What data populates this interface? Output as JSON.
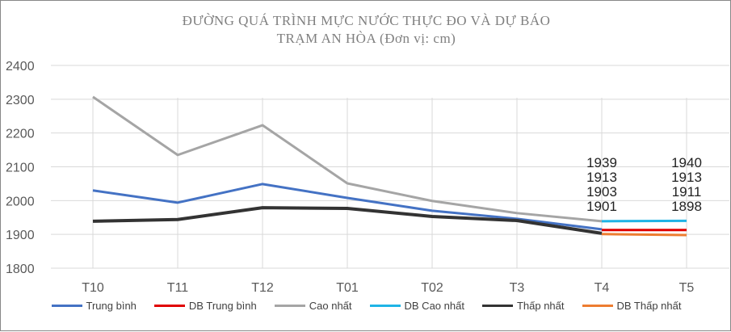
{
  "chart_data": {
    "type": "line",
    "title": "ĐƯỜNG QUÁ TRÌNH MỰC NƯỚC THỰC ĐO VÀ DỰ BÁO",
    "subtitle": "TRẠM AN HÒA (Đơn vị: cm)",
    "categories": [
      "T10",
      "T11",
      "T12",
      "T01",
      "T02",
      "T3",
      "T4",
      "T5"
    ],
    "ylim": [
      1800,
      2400
    ],
    "yticks": [
      1800,
      1900,
      2000,
      2100,
      2200,
      2300,
      2400
    ],
    "grid": true,
    "legend": "bottom",
    "series": [
      {
        "name": "Trung bình",
        "color": "#4472c4",
        "values": [
          2030,
          1994,
          2049,
          2008,
          1970,
          1946,
          1915,
          null
        ],
        "labels": false
      },
      {
        "name": "DB Trung bình",
        "color": "#e00000",
        "values": [
          null,
          null,
          null,
          null,
          null,
          null,
          1913,
          1913
        ],
        "labels": true
      },
      {
        "name": "Cao nhất",
        "color": "#a5a5a5",
        "values": [
          2307,
          2135,
          2223,
          2051,
          1999,
          1963,
          1939,
          null
        ],
        "labels": false
      },
      {
        "name": "DB Cao nhất",
        "color": "#1fb4e6",
        "values": [
          null,
          null,
          null,
          null,
          null,
          null,
          1939,
          1940
        ],
        "labels": true
      },
      {
        "name": "Thấp nhất",
        "color": "#333333",
        "values": [
          1939,
          1944,
          1979,
          1977,
          1953,
          1941,
          1903,
          null
        ],
        "labels": false
      },
      {
        "name": "DB Thấp nhất",
        "color": "#ed7d31",
        "values": [
          null,
          null,
          null,
          null,
          null,
          null,
          1901,
          1898
        ],
        "labels": true
      }
    ],
    "data_labels": {
      "T4": [
        "1939",
        "1913",
        "1903",
        "1901"
      ],
      "T5": [
        "1940",
        "1913",
        "1911",
        "1898"
      ]
    }
  }
}
